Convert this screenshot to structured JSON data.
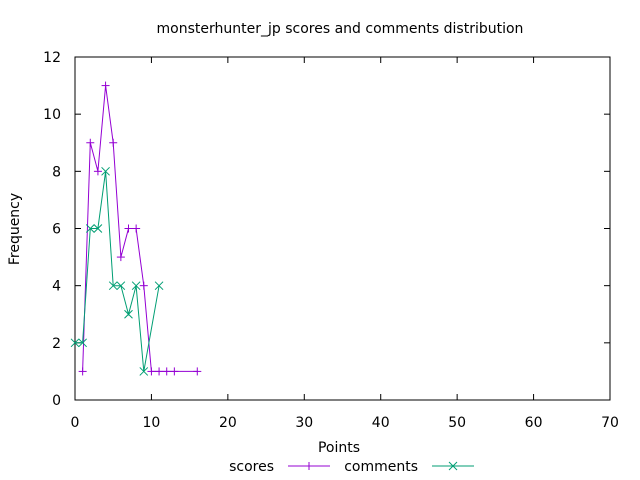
{
  "chart_data": {
    "type": "line",
    "title": "monsterhunter_jp scores and comments distribution",
    "xlabel": "Points",
    "ylabel": "Frequency",
    "xlim": [
      0,
      70
    ],
    "ylim": [
      0,
      12
    ],
    "x_ticks": [
      0,
      10,
      20,
      30,
      40,
      50,
      60,
      70
    ],
    "y_ticks": [
      0,
      2,
      4,
      6,
      8,
      10,
      12
    ],
    "grid": false,
    "legend_position": "bottom-center",
    "series": [
      {
        "name": "scores",
        "color": "#9400d3",
        "marker": "plus",
        "x": [
          1,
          2,
          3,
          4,
          5,
          6,
          7,
          8,
          9,
          10,
          11,
          12,
          13,
          16
        ],
        "y": [
          1,
          9,
          8,
          11,
          9,
          5,
          6,
          6,
          4,
          1,
          1,
          1,
          1,
          1
        ]
      },
      {
        "name": "comments",
        "color": "#009e73",
        "marker": "cross",
        "x": [
          0,
          1,
          2,
          3,
          4,
          5,
          6,
          7,
          8,
          9,
          11
        ],
        "y": [
          2,
          2,
          6,
          6,
          8,
          4,
          4,
          3,
          4,
          1,
          4
        ]
      }
    ]
  }
}
